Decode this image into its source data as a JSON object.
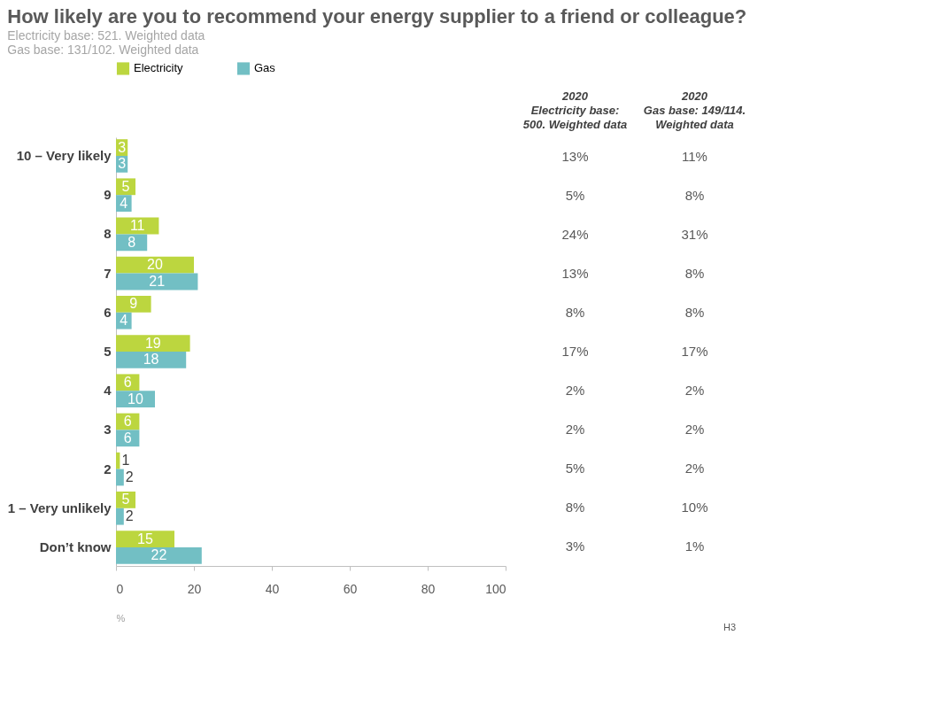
{
  "chart_data": [
    {
      "type": "bar",
      "orientation": "horizontal",
      "title": "How likely are you to recommend your energy supplier to a friend or colleague?",
      "subtitle": "Electricity base: 521. Weighted data\nGas base: 131/102. Weighted data",
      "xlabel": "%",
      "categories": [
        "10 – Very likely",
        "9",
        "8",
        "7",
        "6",
        "5",
        "4",
        "3",
        "2",
        "1 – Very unlikely",
        "Don’t know"
      ],
      "series": [
        {
          "name": "Electricity",
          "color": "#bcd63f",
          "values": [
            3,
            5,
            11,
            20,
            9,
            19,
            6,
            6,
            1,
            5,
            15
          ]
        },
        {
          "name": "Gas",
          "color": "#72bfc4",
          "values": [
            3,
            4,
            8,
            21,
            4,
            18,
            10,
            6,
            2,
            2,
            22
          ]
        }
      ],
      "xlim": [
        0,
        100
      ],
      "xticks": [
        0,
        20,
        40,
        60,
        80,
        100
      ],
      "data_labels": true,
      "legend": "top",
      "grid": false,
      "annotations": [
        "H3"
      ]
    },
    {
      "type": "other",
      "annotations": [
        "2020\nElectricity base:\n500. Weighted data",
        "2020\nGas base: 149/114.\nWeighted data",
        "13%",
        "11%",
        "5%",
        "8%",
        "24%",
        "31%",
        "13%",
        "8%",
        "8%",
        "8%",
        "17%",
        "17%",
        "2%",
        "2%",
        "2%",
        "2%",
        "5%",
        "2%",
        "8%",
        "10%",
        "3%",
        "1%"
      ]
    }
  ]
}
